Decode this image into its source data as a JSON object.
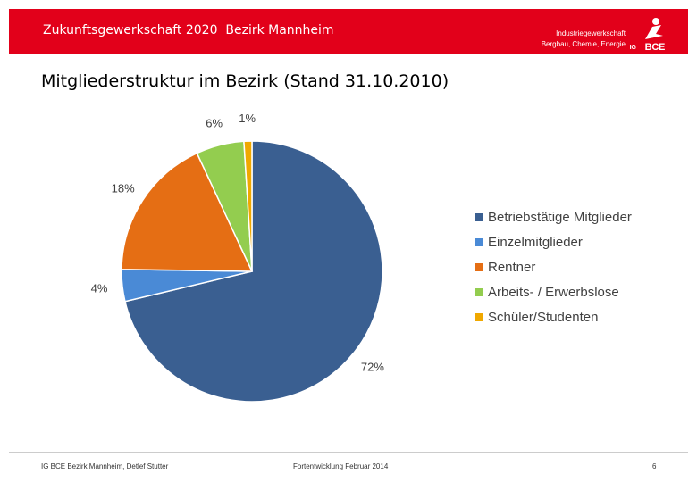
{
  "header": {
    "title": "Zukunftsgewerkschaft 2020  Bezirk Mannheim",
    "brand_line1": "Industriegewerkschaft",
    "brand_line2": "Bergbau, Chemie, Energie",
    "logo_text": "BCE",
    "logo_prefix": "IG",
    "accent_color": "#e2001a"
  },
  "slide": {
    "title": "Mitgliederstruktur im Bezirk (Stand 31.10.2010)"
  },
  "chart_data": {
    "type": "pie",
    "title": "",
    "legend_position": "right",
    "slices": [
      {
        "name": "Betriebstätige Mitglieder",
        "value": 72,
        "label": "72%",
        "color": "#3a5f91"
      },
      {
        "name": "Einzelmitglieder",
        "value": 4,
        "label": "4%",
        "color": "#4a8ad6"
      },
      {
        "name": "Rentner",
        "value": 18,
        "label": "18%",
        "color": "#e56e14"
      },
      {
        "name": "Arbeits- / Erwerbslose",
        "value": 6,
        "label": "6%",
        "color": "#93cd4f"
      },
      {
        "name": "Schüler/Studenten",
        "value": 1,
        "label": "1%",
        "color": "#f0a800"
      }
    ]
  },
  "footer": {
    "left": "IG BCE Bezirk Mannheim, Detlef Stutter",
    "center": "Fortentwicklung Februar 2014",
    "page": "6"
  }
}
